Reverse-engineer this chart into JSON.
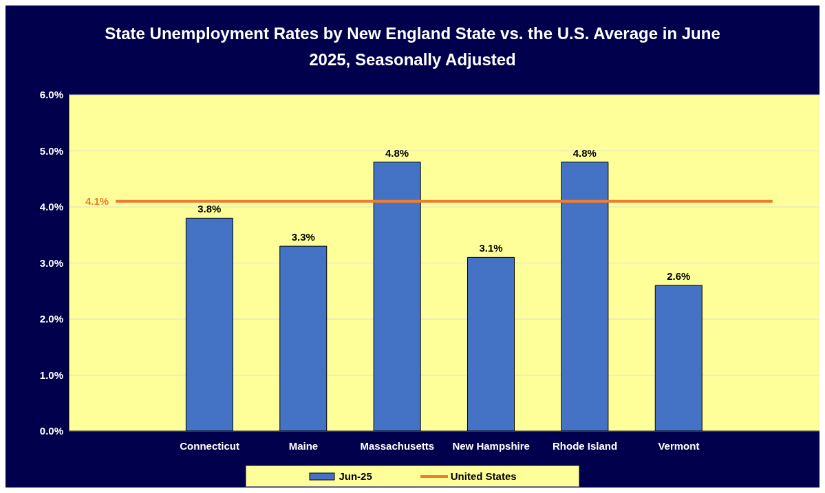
{
  "chart_data": {
    "type": "bar",
    "title": "State Unemployment Rates by New England State  vs. the U.S. Average in June 2025, Seasonally Adjusted",
    "categories": [
      null,
      "Connecticut",
      "Maine",
      "Massachusetts",
      "New Hampshire",
      "Rhode Island",
      "Vermont",
      null
    ],
    "series": [
      {
        "name": "Jun-25",
        "color": "#4472c4",
        "values": [
          null,
          3.8,
          3.3,
          4.8,
          3.1,
          4.8,
          2.6,
          null
        ],
        "value_labels": [
          null,
          "3.8%",
          "3.3%",
          "4.8%",
          "3.1%",
          "4.8%",
          "2.6%",
          null
        ]
      },
      {
        "name": "United States",
        "type": "line",
        "color": "#ed7d31",
        "values": [
          4.1,
          4.1,
          4.1,
          4.1,
          4.1,
          4.1,
          4.1,
          4.1
        ],
        "value_labels": [
          "4.1%",
          null,
          null,
          null,
          null,
          null,
          null,
          null
        ]
      }
    ],
    "ylim": [
      0,
      6
    ],
    "yticks": [
      {
        "value": 0,
        "label": "0.0%"
      },
      {
        "value": 1,
        "label": "1.0%"
      },
      {
        "value": 2,
        "label": "2.0%"
      },
      {
        "value": 3,
        "label": "3.0%"
      },
      {
        "value": 4,
        "label": "4.0%"
      },
      {
        "value": 5,
        "label": "5.0%"
      },
      {
        "value": 6,
        "label": "6.0%"
      }
    ],
    "grid": "y",
    "legend": "bottom"
  }
}
